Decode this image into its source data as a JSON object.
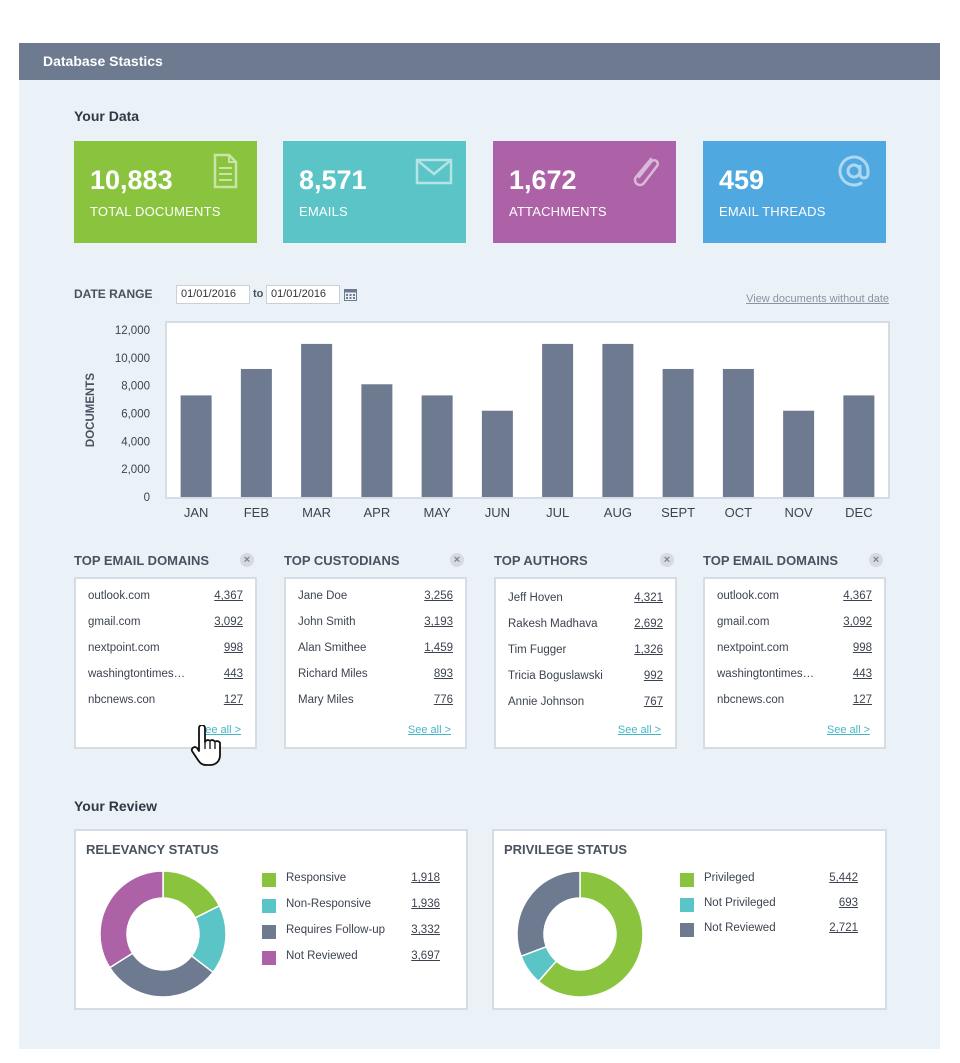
{
  "header": {
    "title": "Database Stastics"
  },
  "your_data": {
    "title": "Your Data"
  },
  "stats": [
    {
      "value": "10,883",
      "label": "TOTAL DOCUMENTS",
      "color": "#8ac43f",
      "icon": "document-icon"
    },
    {
      "value": "8,571",
      "label": "EMAILS",
      "color": "#5ac4c7",
      "icon": "envelope-icon"
    },
    {
      "value": "1,672",
      "label": "ATTACHMENTS",
      "color": "#ad62a8",
      "icon": "paperclip-icon"
    },
    {
      "value": "459",
      "label": "EMAIL THREADS",
      "color": "#4fa8e0",
      "icon": "at-sign-icon"
    }
  ],
  "date_range": {
    "label": "DATE RANGE",
    "from": "01/01/2016",
    "to_label": "to",
    "to": "01/01/2016",
    "no_date_link": "View documents without date"
  },
  "chart_data": {
    "type": "bar",
    "categories": [
      "JAN",
      "FEB",
      "MAR",
      "APR",
      "MAY",
      "JUN",
      "JUL",
      "AUG",
      "SEPT",
      "OCT",
      "NOV",
      "DEC"
    ],
    "values": [
      7300,
      9200,
      11000,
      8100,
      7300,
      6200,
      11000,
      11000,
      9200,
      9200,
      6200,
      7300
    ],
    "ylabel": "DOCUMENTS",
    "ylim": [
      0,
      12000
    ],
    "yticks": [
      "0",
      "2,000",
      "4,000",
      "6,000",
      "8,000",
      "10,000",
      "12,000"
    ],
    "bar_color": "#6d7a90"
  },
  "cards": [
    {
      "title": "TOP EMAIL DOMAINS",
      "close": "×",
      "rows": [
        {
          "name": "outlook.com",
          "value": "4,367"
        },
        {
          "name": "gmail.com",
          "value": "3,092"
        },
        {
          "name": "nextpoint.com",
          "value": "998"
        },
        {
          "name": "washingtontimes…",
          "value": "443"
        },
        {
          "name": "nbcnews.con",
          "value": "127"
        }
      ],
      "see_all": "See all >"
    },
    {
      "title": "TOP CUSTODIANS",
      "close": "×",
      "rows": [
        {
          "name": "Jane Doe",
          "value": "3,256"
        },
        {
          "name": "John Smith",
          "value": "3,193"
        },
        {
          "name": "Alan Smithee",
          "value": "1,459"
        },
        {
          "name": "Richard Miles",
          "value": "893"
        },
        {
          "name": "Mary Miles",
          "value": "776"
        }
      ],
      "see_all": "See all >"
    },
    {
      "title": "TOP AUTHORS",
      "close": "×",
      "rows": [
        {
          "name": "Jeff Hoven",
          "value": "4,321"
        },
        {
          "name": "Rakesh Madhava",
          "value": "2,692"
        },
        {
          "name": "Tim Fugger",
          "value": "1,326"
        },
        {
          "name": "Tricia Boguslawski",
          "value": "992"
        },
        {
          "name": "Annie Johnson",
          "value": "767"
        }
      ],
      "see_all": "See all >"
    },
    {
      "title": "TOP EMAIL DOMAINS",
      "close": "×",
      "rows": [
        {
          "name": "outlook.com",
          "value": "4,367"
        },
        {
          "name": "gmail.com",
          "value": "3,092"
        },
        {
          "name": "nextpoint.com",
          "value": "998"
        },
        {
          "name": "washingtontimes…",
          "value": "443"
        },
        {
          "name": "nbcnews.con",
          "value": "127"
        }
      ],
      "see_all": "See all >"
    }
  ],
  "your_review": {
    "title": "Your Review"
  },
  "relevancy": {
    "title": "RELEVANCY STATUS",
    "items": [
      {
        "label": "Responsive",
        "value": "1,918",
        "num": 1918,
        "color": "#8ac43f"
      },
      {
        "label": "Non-Responsive",
        "value": "1,936",
        "num": 1936,
        "color": "#5ac4c7"
      },
      {
        "label": "Requires Follow-up",
        "value": "3,332",
        "num": 3332,
        "color": "#6d7a90"
      },
      {
        "label": "Not Reviewed",
        "value": "3,697",
        "num": 3697,
        "color": "#ad62a8"
      }
    ]
  },
  "privilege": {
    "title": "PRIVILEGE STATUS",
    "items": [
      {
        "label": "Privileged",
        "value": "5,442",
        "num": 5442,
        "color": "#8ac43f"
      },
      {
        "label": "Not Privileged",
        "value": "693",
        "num": 693,
        "color": "#5ac4c7"
      },
      {
        "label": "Not Reviewed",
        "value": "2,721",
        "num": 2721,
        "color": "#6d7a90"
      }
    ]
  }
}
